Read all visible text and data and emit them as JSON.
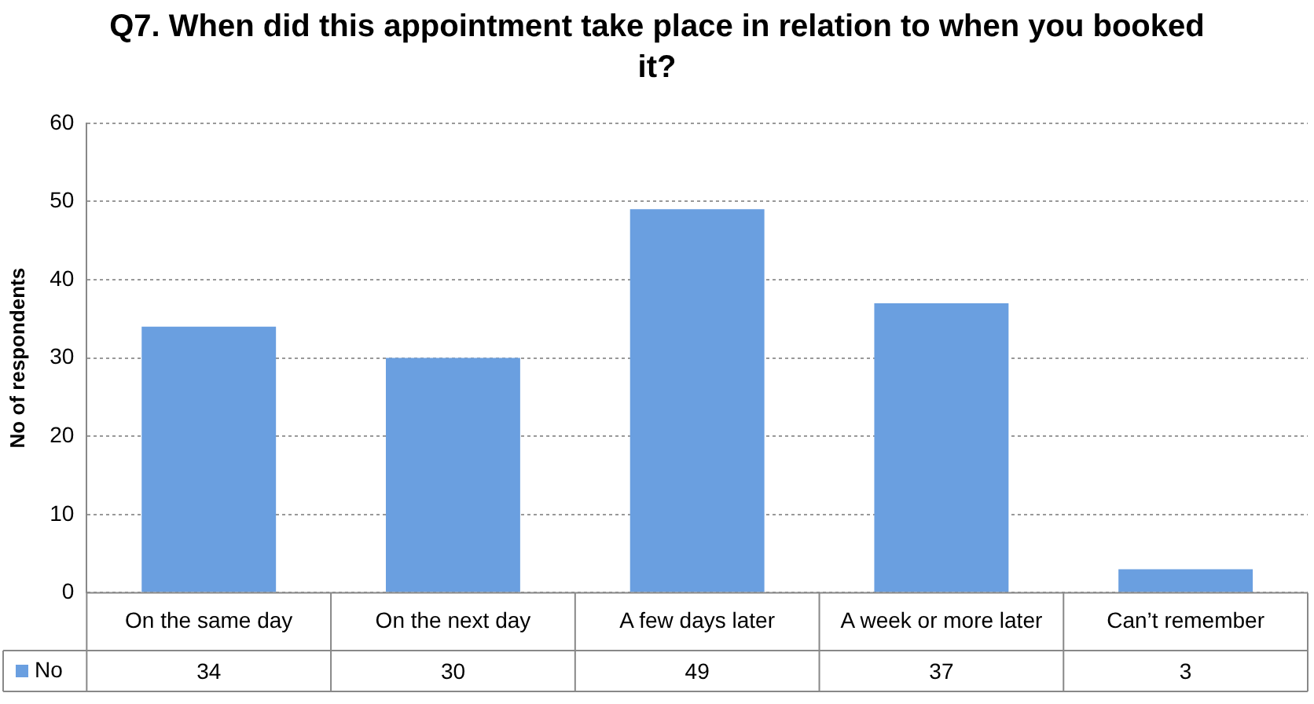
{
  "chart_data": {
    "type": "bar",
    "title": "Q7. When did this appointment take place in relation to when you booked it?",
    "ylabel": "No of respondents",
    "categories": [
      "On the same day",
      "On the next day",
      "A few days later",
      "A week or more later",
      "Can’t remember"
    ],
    "series": [
      {
        "name": "No",
        "color": "#6a9fe0",
        "values": [
          34,
          30,
          49,
          37,
          3
        ]
      }
    ],
    "ylim": [
      0,
      60
    ],
    "yticks": [
      0,
      10,
      20,
      30,
      40,
      50,
      60
    ],
    "grid": "y",
    "legend": "bottom left",
    "data_labels": true
  }
}
